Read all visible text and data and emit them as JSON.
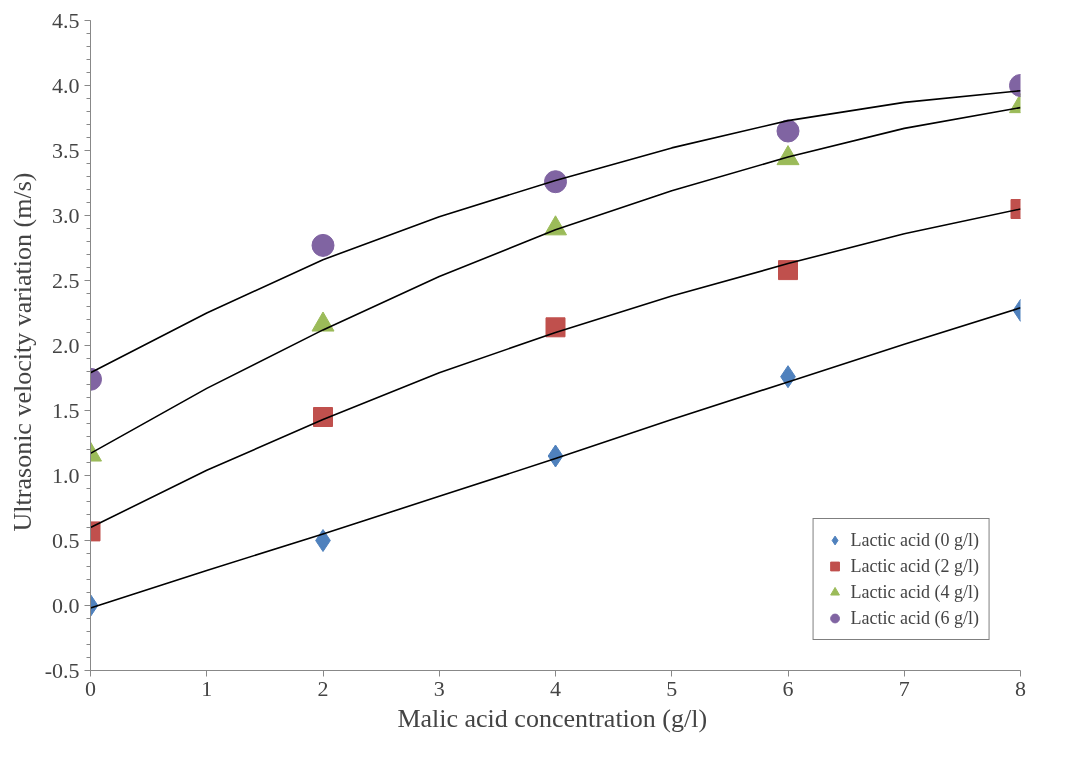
{
  "chart_data": {
    "type": "scatter",
    "xlabel": "Malic acid concentration  (g/l)",
    "ylabel": "Ultrasonic velocity  variation  (m/s)",
    "xlim": [
      0,
      8
    ],
    "xticks": [
      0,
      1,
      2,
      3,
      4,
      5,
      6,
      7,
      8
    ],
    "ylim": [
      -0.5,
      4.5
    ],
    "yticks": [
      {
        "value": -0.5,
        "label": "-0.5"
      },
      {
        "value": 0,
        "label": "0.0"
      },
      {
        "value": 0.5,
        "label": "0.5"
      },
      {
        "value": 1,
        "label": "1.0"
      },
      {
        "value": 1.5,
        "label": "1.5"
      },
      {
        "value": 2,
        "label": "2.0"
      },
      {
        "value": 2.5,
        "label": "2.5"
      },
      {
        "value": 3,
        "label": "3.0"
      },
      {
        "value": 3.5,
        "label": "3.5"
      },
      {
        "value": 4,
        "label": "4.0"
      },
      {
        "value": 4.5,
        "label": "4.5"
      }
    ],
    "grid": false,
    "legend": "bottom right",
    "series": [
      {
        "type": "line",
        "color": "#000000",
        "marker": "none",
        "x": [
          0,
          1,
          2,
          3,
          4,
          5,
          6,
          7,
          8
        ],
        "values": [
          -0.02,
          0.27,
          0.55,
          0.84,
          1.13,
          1.43,
          1.72,
          2.01,
          2.29
        ]
      },
      {
        "type": "line",
        "color": "#000000",
        "marker": "none",
        "x": [
          0,
          1,
          2,
          3,
          4,
          5,
          6,
          7,
          8
        ],
        "values": [
          0.6,
          1.04,
          1.43,
          1.79,
          2.1,
          2.38,
          2.63,
          2.86,
          3.05
        ]
      },
      {
        "type": "line",
        "color": "#000000",
        "marker": "none",
        "x": [
          0,
          1,
          2,
          3,
          4,
          5,
          6,
          7,
          8
        ],
        "values": [
          1.17,
          1.67,
          2.12,
          2.53,
          2.89,
          3.19,
          3.45,
          3.67,
          3.83
        ]
      },
      {
        "type": "line",
        "color": "#000000",
        "marker": "none",
        "x": [
          0,
          1,
          2,
          3,
          4,
          5,
          6,
          7,
          8
        ],
        "values": [
          1.79,
          2.25,
          2.66,
          2.99,
          3.27,
          3.52,
          3.73,
          3.87,
          3.96
        ]
      },
      {
        "name": "Lactic acid (0 g/l)",
        "color": "#4f81bd",
        "marker": "diamond",
        "x": [
          0,
          2,
          4,
          6,
          8
        ],
        "values": [
          0.0,
          0.5,
          1.15,
          1.76,
          2.27
        ]
      },
      {
        "name": "Lactic acid (2 g/l)",
        "color": "#c0504d",
        "marker": "square",
        "x": [
          0,
          2,
          4,
          6,
          8
        ],
        "values": [
          0.57,
          1.45,
          2.14,
          2.58,
          3.05
        ]
      },
      {
        "name": "Lactic acid (4 g/l)",
        "color": "#9bbb59",
        "marker": "triangle",
        "x": [
          0,
          2,
          4,
          6,
          8
        ],
        "values": [
          1.16,
          2.16,
          2.9,
          3.44,
          3.84
        ]
      },
      {
        "name": "Lactic acid (6 g/l)",
        "color": "#8064a2",
        "marker": "circle",
        "x": [
          0,
          2,
          4,
          6,
          8
        ],
        "values": [
          1.74,
          2.77,
          3.26,
          3.65,
          4.0
        ]
      }
    ]
  }
}
